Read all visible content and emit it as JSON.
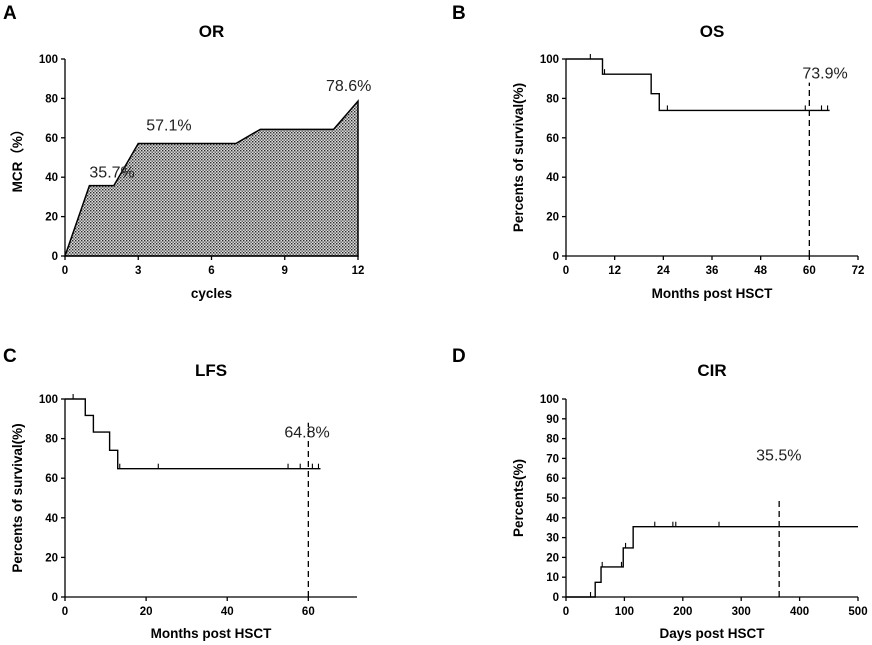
{
  "chart_data": [
    {
      "panel": "A",
      "type": "area",
      "title": "OR",
      "xlabel": "cycles",
      "ylabel": "MCR（%）",
      "xlim": [
        0,
        12
      ],
      "ylim": [
        0,
        100
      ],
      "xticks": [
        0,
        3,
        6,
        9,
        12
      ],
      "yticks": [
        0,
        20,
        40,
        60,
        80,
        100
      ],
      "x": [
        0,
        1,
        2,
        3,
        7,
        8,
        11,
        12
      ],
      "y": [
        0,
        35.7,
        35.7,
        57.1,
        57.1,
        64.3,
        64.3,
        78.6
      ],
      "annotations": [
        {
          "text": "35.7%",
          "x": 1,
          "y": 35.7
        },
        {
          "text": "57.1%",
          "x": 3,
          "y": 57.1
        },
        {
          "text": "78.6%",
          "x": 12,
          "y": 78.6
        }
      ]
    },
    {
      "panel": "B",
      "type": "step",
      "title": "OS",
      "xlabel": "Months post HSCT",
      "ylabel": "Percents of survival(%)",
      "xlim": [
        0,
        72
      ],
      "ylim": [
        0,
        100
      ],
      "xticks": [
        0,
        12,
        24,
        36,
        48,
        60,
        72
      ],
      "yticks": [
        0,
        20,
        40,
        60,
        80,
        100
      ],
      "steps": [
        [
          0,
          100
        ],
        [
          9,
          92.3
        ],
        [
          21,
          82.4
        ],
        [
          23,
          73.9
        ]
      ],
      "end_x": 65,
      "censored": [
        [
          6,
          100
        ],
        [
          9.5,
          92.3
        ],
        [
          25,
          73.9
        ],
        [
          59,
          73.9
        ],
        [
          63,
          73.9
        ],
        [
          64.5,
          73.9
        ]
      ],
      "ref_x": 60,
      "annotations": [
        {
          "text": "73.9%",
          "x": 60,
          "y": 73.9
        }
      ]
    },
    {
      "panel": "C",
      "type": "step",
      "title": "LFS",
      "xlabel": "Months post HSCT",
      "ylabel": "Percents of survival(%)",
      "xlim": [
        0,
        72
      ],
      "ylim": [
        0,
        100
      ],
      "xticks": [
        0,
        20,
        40,
        60
      ],
      "yticks": [
        0,
        20,
        40,
        60,
        80,
        100
      ],
      "steps": [
        [
          0,
          100
        ],
        [
          5,
          91.7
        ],
        [
          7,
          83.3
        ],
        [
          11,
          74.1
        ],
        [
          13,
          64.8
        ]
      ],
      "end_x": 63,
      "censored": [
        [
          2,
          100
        ],
        [
          13.5,
          64.8
        ],
        [
          23,
          64.8
        ],
        [
          55,
          64.8
        ],
        [
          58,
          64.8
        ],
        [
          61,
          64.8
        ],
        [
          62.5,
          64.8
        ]
      ],
      "ref_x": 60,
      "annotations": [
        {
          "text": "64.8%",
          "x": 60,
          "y": 64.8
        }
      ]
    },
    {
      "panel": "D",
      "type": "step-up",
      "title": "CIR",
      "xlabel": "Days post HSCT",
      "ylabel": "Percents(%)",
      "xlim": [
        0,
        500
      ],
      "ylim": [
        0,
        100
      ],
      "xticks": [
        0,
        100,
        200,
        300,
        400,
        500
      ],
      "yticks": [
        0,
        10,
        20,
        30,
        40,
        50,
        60,
        70,
        80,
        90,
        100
      ],
      "steps": [
        [
          0,
          0
        ],
        [
          45,
          0
        ],
        [
          50,
          7.4
        ],
        [
          60,
          15.2
        ],
        [
          98,
          24.8
        ],
        [
          115,
          35.5
        ]
      ],
      "end_x": 500,
      "censored": [
        [
          42,
          0
        ],
        [
          62,
          15.2
        ],
        [
          95,
          15.2
        ],
        [
          102,
          24.8
        ],
        [
          152,
          35.5
        ],
        [
          183,
          35.5
        ],
        [
          188,
          35.5
        ],
        [
          262,
          35.5
        ]
      ],
      "ref_x": 365,
      "annotations": [
        {
          "text": "35.5%",
          "x": 365,
          "y": 35.5
        }
      ]
    }
  ]
}
